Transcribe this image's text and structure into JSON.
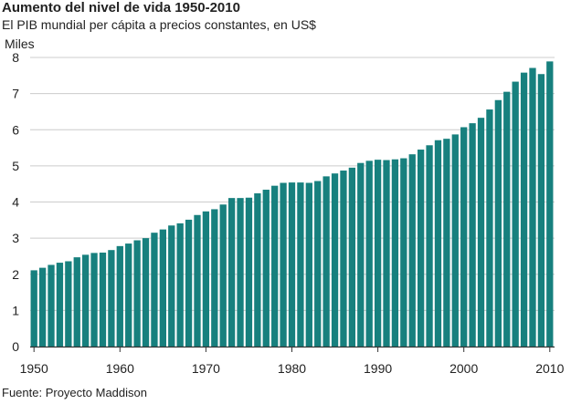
{
  "header": {
    "title": "Aumento del nivel de vida 1950-2010",
    "subtitle": "El PIB mundial per cápita a precios constantes, en US$"
  },
  "footer": {
    "source": "Fuente: Proyecto Maddison"
  },
  "colors": {
    "bar": "#17807e",
    "grid": "#cccccc",
    "axis": "#333333"
  },
  "chart_data": {
    "type": "bar",
    "title": "Aumento del nivel de vida 1950-2010",
    "subtitle": "El PIB mundial per cápita a precios constantes, en US$",
    "ylabel": "Miles",
    "xlabel": "",
    "ylim": [
      0,
      8
    ],
    "xlim": [
      1950,
      2010
    ],
    "yticks": [
      "0",
      "1",
      "2",
      "3",
      "4",
      "5",
      "6",
      "7",
      "8"
    ],
    "xticks": [
      "1950",
      "1960",
      "1970",
      "1980",
      "1990",
      "2000",
      "2010"
    ],
    "grid": true,
    "x": [
      1950,
      1951,
      1952,
      1953,
      1954,
      1955,
      1956,
      1957,
      1958,
      1959,
      1960,
      1961,
      1962,
      1963,
      1964,
      1965,
      1966,
      1967,
      1968,
      1969,
      1970,
      1971,
      1972,
      1973,
      1974,
      1975,
      1976,
      1977,
      1978,
      1979,
      1980,
      1981,
      1982,
      1983,
      1984,
      1985,
      1986,
      1987,
      1988,
      1989,
      1990,
      1991,
      1992,
      1993,
      1994,
      1995,
      1996,
      1997,
      1998,
      1999,
      2000,
      2001,
      2002,
      2003,
      2004,
      2005,
      2006,
      2007,
      2008,
      2009,
      2010
    ],
    "values": [
      2.11,
      2.18,
      2.26,
      2.32,
      2.36,
      2.47,
      2.54,
      2.59,
      2.6,
      2.67,
      2.78,
      2.85,
      2.94,
      3.0,
      3.15,
      3.24,
      3.35,
      3.41,
      3.51,
      3.64,
      3.74,
      3.8,
      3.93,
      4.11,
      4.11,
      4.12,
      4.24,
      4.34,
      4.45,
      4.53,
      4.54,
      4.54,
      4.53,
      4.58,
      4.71,
      4.79,
      4.87,
      4.95,
      5.08,
      5.14,
      5.17,
      5.16,
      5.18,
      5.21,
      5.32,
      5.45,
      5.57,
      5.71,
      5.75,
      5.87,
      6.07,
      6.18,
      6.33,
      6.56,
      6.82,
      7.05,
      7.33,
      7.58,
      7.71,
      7.54,
      7.89
    ],
    "source": "Fuente: Proyecto Maddison"
  }
}
